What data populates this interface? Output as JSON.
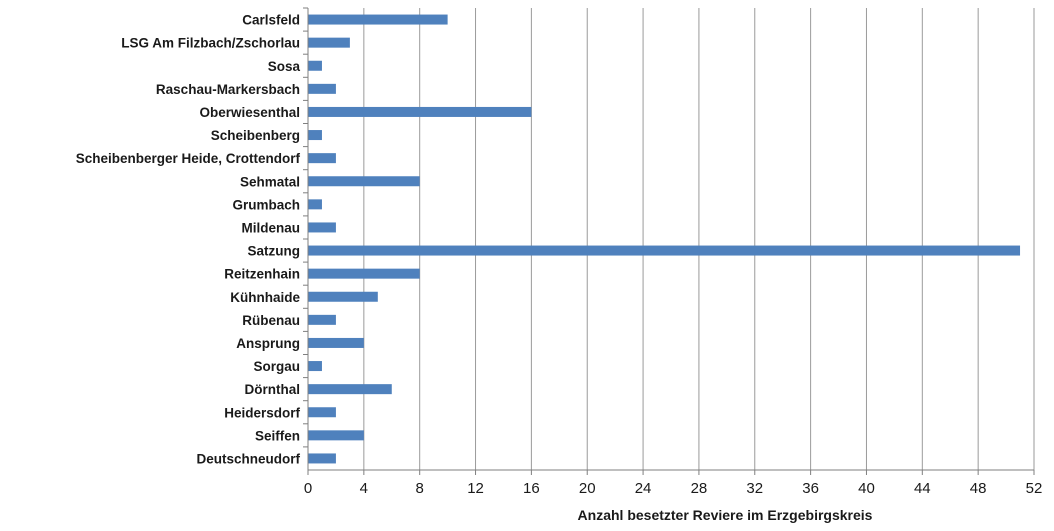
{
  "chart_data": {
    "type": "bar",
    "orientation": "horizontal",
    "categories": [
      "Carlsfeld",
      "LSG Am Filzbach/Zschorlau",
      "Sosa",
      "Raschau-Markersbach",
      "Oberwiesenthal",
      "Scheibenberg",
      "Scheibenberger Heide, Crottendorf",
      "Sehmatal",
      "Grumbach",
      "Mildenau",
      "Satzung",
      "Reitzenhain",
      "Kühnhaide",
      "Rübenau",
      "Ansprung",
      "Sorgau",
      "Dörnthal",
      "Heidersdorf",
      "Seiffen",
      "Deutschneudorf"
    ],
    "values": [
      10,
      3,
      1,
      2,
      16,
      1,
      2,
      8,
      1,
      2,
      51,
      8,
      5,
      2,
      4,
      1,
      6,
      2,
      4,
      2
    ],
    "xlabel": "Anzahl besetzter Reviere im Erzgebirgskreis",
    "ylabel": "",
    "xlim": [
      0,
      52
    ],
    "xticks": [
      "0",
      "4",
      "8",
      "12",
      "16",
      "20",
      "24",
      "28",
      "32",
      "36",
      "40",
      "44",
      "48",
      "52"
    ],
    "grid": "vertical",
    "bar_color": "#4f81bd",
    "grid_color": "#9a9a9a"
  }
}
